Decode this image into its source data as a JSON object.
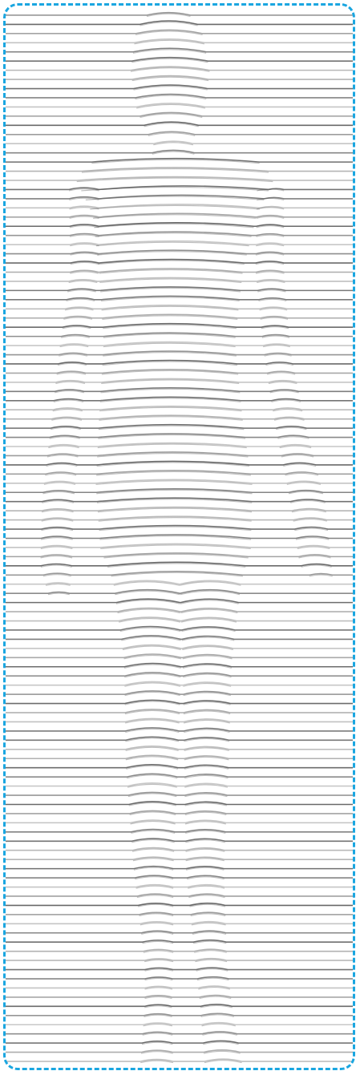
{
  "artwork": {
    "subject": "figure-line-illusion",
    "frame_color": "#1aa6e0",
    "line_color": "#444444",
    "background": "#ffffff"
  }
}
